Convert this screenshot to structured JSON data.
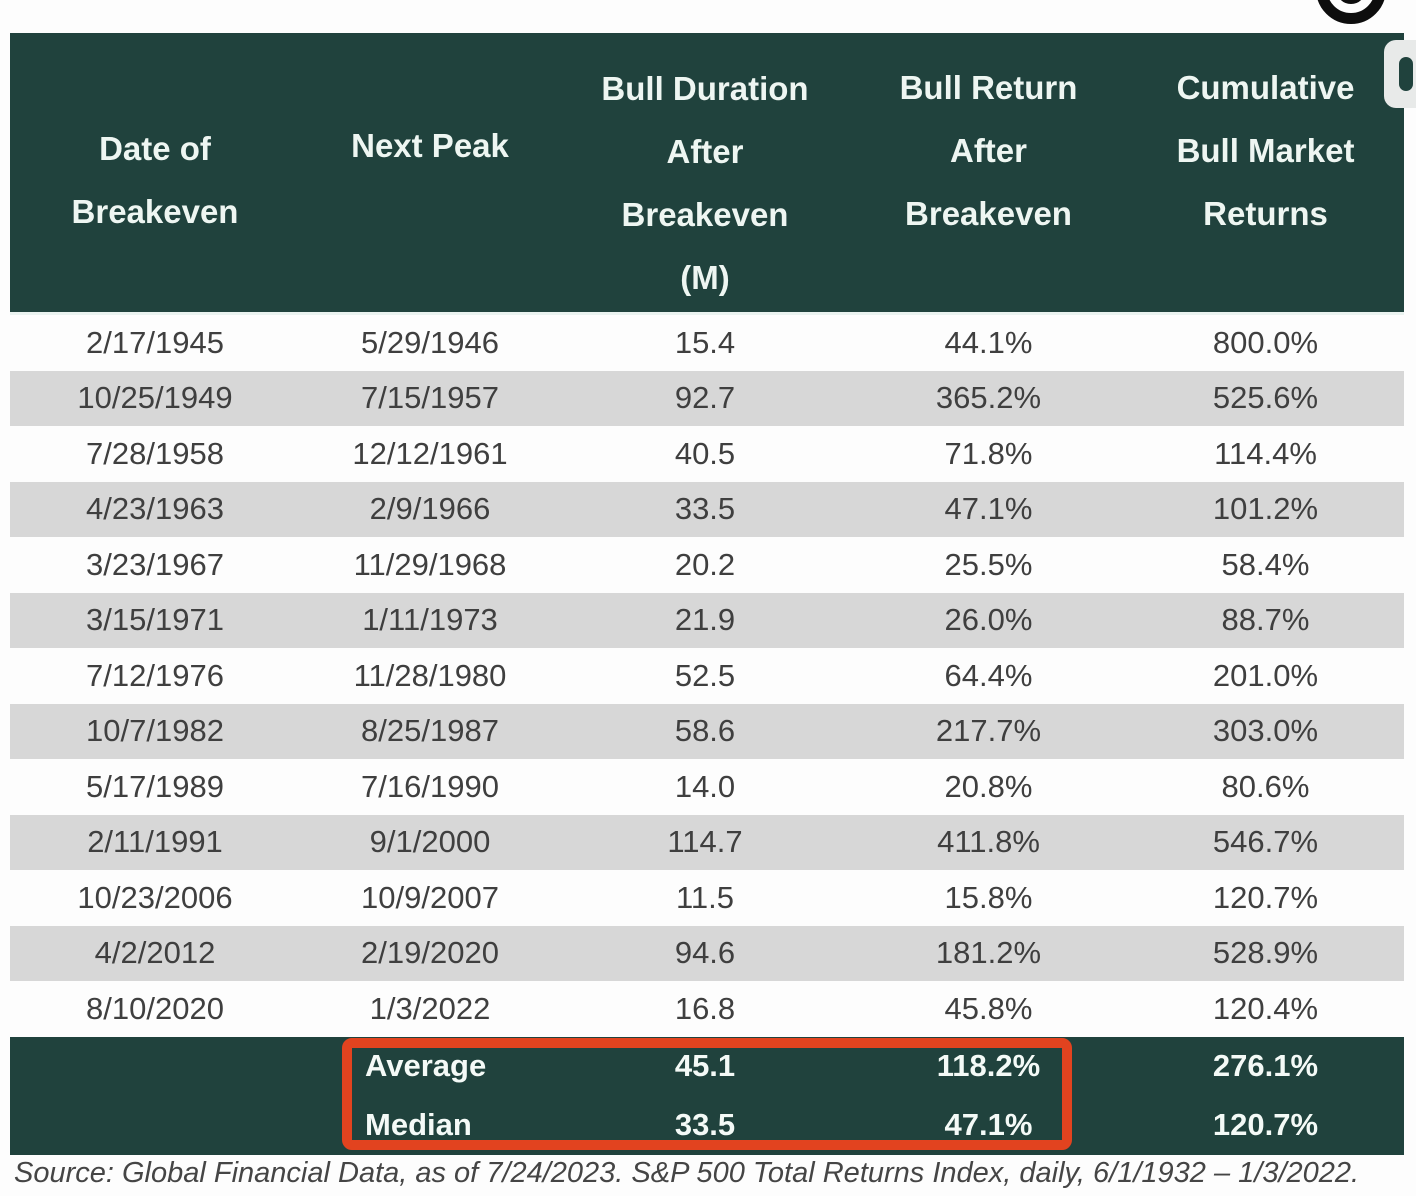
{
  "chart_data": {
    "type": "table",
    "columns": [
      "Date of Breakeven",
      "Next Peak",
      "Bull Duration After Breakeven (M)",
      "Bull Return After Breakeven",
      "Cumulative Bull Market Returns"
    ],
    "rows": [
      [
        "2/17/1945",
        "5/29/1946",
        "15.4",
        "44.1%",
        "800.0%"
      ],
      [
        "10/25/1949",
        "7/15/1957",
        "92.7",
        "365.2%",
        "525.6%"
      ],
      [
        "7/28/1958",
        "12/12/1961",
        "40.5",
        "71.8%",
        "114.4%"
      ],
      [
        "4/23/1963",
        "2/9/1966",
        "33.5",
        "47.1%",
        "101.2%"
      ],
      [
        "3/23/1967",
        "11/29/1968",
        "20.2",
        "25.5%",
        "58.4%"
      ],
      [
        "3/15/1971",
        "1/11/1973",
        "21.9",
        "26.0%",
        "88.7%"
      ],
      [
        "7/12/1976",
        "11/28/1980",
        "52.5",
        "64.4%",
        "201.0%"
      ],
      [
        "10/7/1982",
        "8/25/1987",
        "58.6",
        "217.7%",
        "303.0%"
      ],
      [
        "5/17/1989",
        "7/16/1990",
        "14.0",
        "20.8%",
        "80.6%"
      ],
      [
        "2/11/1991",
        "9/1/2000",
        "114.7",
        "411.8%",
        "546.7%"
      ],
      [
        "10/23/2006",
        "10/9/2007",
        "11.5",
        "15.8%",
        "120.7%"
      ],
      [
        "4/2/2012",
        "2/19/2020",
        "94.6",
        "181.2%",
        "528.9%"
      ],
      [
        "8/10/2020",
        "1/3/2022",
        "16.8",
        "45.8%",
        "120.4%"
      ]
    ],
    "summary": [
      {
        "label": "Average",
        "values": [
          "45.1",
          "118.2%",
          "276.1%"
        ]
      },
      {
        "label": "Median",
        "values": [
          "33.5",
          "47.1%",
          "120.7%"
        ]
      }
    ],
    "source_note": "Source: Global Financial Data, as of 7/24/2023. S&P 500 Total Returns Index, daily, 6/1/1932 – 1/3/2022.",
    "annotation": "Red box highlights Average and Median of Bull Duration and Bull Return columns"
  },
  "header_display": [
    "Date of\nBreakeven",
    "Next Peak",
    "Bull Duration\nAfter\nBreakeven\n(M)",
    "Bull Return\nAfter\nBreakeven",
    "Cumulative\nBull Market\nReturns"
  ],
  "colors": {
    "header_bg": "#20423d",
    "row_alt_bg": "#d7d7d7",
    "highlight_border": "#e2431f",
    "header_text": "#eef6f2",
    "body_text": "#3f3f3f"
  },
  "icons": {
    "top_right": "target-icon",
    "corner_shape": "rounded-capsule"
  }
}
